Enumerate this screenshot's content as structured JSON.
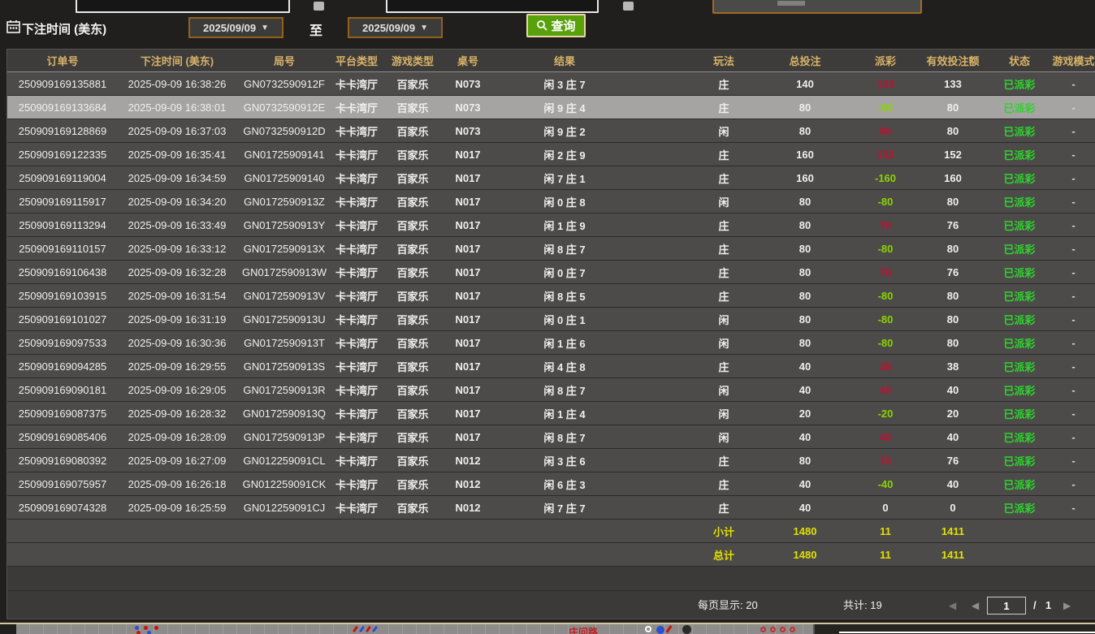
{
  "colors": {
    "header_gold": "#d9b369",
    "win_red": "#c11030",
    "loss_green": "#8ad402",
    "status_green": "#2fd32f",
    "total_yellow": "#e2e000",
    "query_green": "#58a10b",
    "date_border_orange": "#93601c",
    "highlight_row": "#a5a4a2"
  },
  "filters": {
    "bet_time_label": "下注时间 (美东)",
    "date_from": "2025/09/09",
    "date_to": "2025/09/09",
    "dropdown_arrow": "▼",
    "to_label": "至",
    "query_label": "查询"
  },
  "table": {
    "headers": [
      "订单号",
      "下注时间 (美东)",
      "局号",
      "平台类型",
      "游戏类型",
      "桌号",
      "结果",
      "",
      "玩法",
      "总投注",
      "派彩",
      "有效投注额",
      "状态",
      "游戏模式"
    ],
    "rows": [
      {
        "order": "250909169135881",
        "time": "2025-09-09 16:38:26",
        "round": "GN0732590912F",
        "platform": "卡卡湾厅",
        "game": "百家乐",
        "table": "N073",
        "result": "闲 3 庄 7",
        "play": "庄",
        "total": "140",
        "payout": "133",
        "payout_state": "pos",
        "valid": "133",
        "status": "已派彩",
        "mode": "-",
        "highlighted": false
      },
      {
        "order": "250909169133684",
        "time": "2025-09-09 16:38:01",
        "round": "GN0732590912E",
        "platform": "卡卡湾厅",
        "game": "百家乐",
        "table": "N073",
        "result": "闲 9 庄 4",
        "play": "庄",
        "total": "80",
        "payout": "-80",
        "payout_state": "neg",
        "valid": "80",
        "status": "已派彩",
        "mode": "-",
        "highlighted": true
      },
      {
        "order": "250909169128869",
        "time": "2025-09-09 16:37:03",
        "round": "GN0732590912D",
        "platform": "卡卡湾厅",
        "game": "百家乐",
        "table": "N073",
        "result": "闲 9 庄 2",
        "play": "闲",
        "total": "80",
        "payout": "80",
        "payout_state": "pos",
        "valid": "80",
        "status": "已派彩",
        "mode": "-",
        "highlighted": false
      },
      {
        "order": "250909169122335",
        "time": "2025-09-09 16:35:41",
        "round": "GN01725909141",
        "platform": "卡卡湾厅",
        "game": "百家乐",
        "table": "N017",
        "result": "闲 2 庄 9",
        "play": "庄",
        "total": "160",
        "payout": "152",
        "payout_state": "pos",
        "valid": "152",
        "status": "已派彩",
        "mode": "-",
        "highlighted": false
      },
      {
        "order": "250909169119004",
        "time": "2025-09-09 16:34:59",
        "round": "GN01725909140",
        "platform": "卡卡湾厅",
        "game": "百家乐",
        "table": "N017",
        "result": "闲 7 庄 1",
        "play": "庄",
        "total": "160",
        "payout": "-160",
        "payout_state": "neg",
        "valid": "160",
        "status": "已派彩",
        "mode": "-",
        "highlighted": false
      },
      {
        "order": "250909169115917",
        "time": "2025-09-09 16:34:20",
        "round": "GN0172590913Z",
        "platform": "卡卡湾厅",
        "game": "百家乐",
        "table": "N017",
        "result": "闲 0 庄 8",
        "play": "闲",
        "total": "80",
        "payout": "-80",
        "payout_state": "neg",
        "valid": "80",
        "status": "已派彩",
        "mode": "-",
        "highlighted": false
      },
      {
        "order": "250909169113294",
        "time": "2025-09-09 16:33:49",
        "round": "GN0172590913Y",
        "platform": "卡卡湾厅",
        "game": "百家乐",
        "table": "N017",
        "result": "闲 1 庄 9",
        "play": "庄",
        "total": "80",
        "payout": "76",
        "payout_state": "pos",
        "valid": "76",
        "status": "已派彩",
        "mode": "-",
        "highlighted": false
      },
      {
        "order": "250909169110157",
        "time": "2025-09-09 16:33:12",
        "round": "GN0172590913X",
        "platform": "卡卡湾厅",
        "game": "百家乐",
        "table": "N017",
        "result": "闲 8 庄 7",
        "play": "庄",
        "total": "80",
        "payout": "-80",
        "payout_state": "neg",
        "valid": "80",
        "status": "已派彩",
        "mode": "-",
        "highlighted": false
      },
      {
        "order": "250909169106438",
        "time": "2025-09-09 16:32:28",
        "round": "GN0172590913W",
        "platform": "卡卡湾厅",
        "game": "百家乐",
        "table": "N017",
        "result": "闲 0 庄 7",
        "play": "庄",
        "total": "80",
        "payout": "76",
        "payout_state": "pos",
        "valid": "76",
        "status": "已派彩",
        "mode": "-",
        "highlighted": false
      },
      {
        "order": "250909169103915",
        "time": "2025-09-09 16:31:54",
        "round": "GN0172590913V",
        "platform": "卡卡湾厅",
        "game": "百家乐",
        "table": "N017",
        "result": "闲 8 庄 5",
        "play": "庄",
        "total": "80",
        "payout": "-80",
        "payout_state": "neg",
        "valid": "80",
        "status": "已派彩",
        "mode": "-",
        "highlighted": false
      },
      {
        "order": "250909169101027",
        "time": "2025-09-09 16:31:19",
        "round": "GN0172590913U",
        "platform": "卡卡湾厅",
        "game": "百家乐",
        "table": "N017",
        "result": "闲 0 庄 1",
        "play": "闲",
        "total": "80",
        "payout": "-80",
        "payout_state": "neg",
        "valid": "80",
        "status": "已派彩",
        "mode": "-",
        "highlighted": false
      },
      {
        "order": "250909169097533",
        "time": "2025-09-09 16:30:36",
        "round": "GN0172590913T",
        "platform": "卡卡湾厅",
        "game": "百家乐",
        "table": "N017",
        "result": "闲 1 庄 6",
        "play": "闲",
        "total": "80",
        "payout": "-80",
        "payout_state": "neg",
        "valid": "80",
        "status": "已派彩",
        "mode": "-",
        "highlighted": false
      },
      {
        "order": "250909169094285",
        "time": "2025-09-09 16:29:55",
        "round": "GN0172590913S",
        "platform": "卡卡湾厅",
        "game": "百家乐",
        "table": "N017",
        "result": "闲 4 庄 8",
        "play": "庄",
        "total": "40",
        "payout": "38",
        "payout_state": "pos",
        "valid": "38",
        "status": "已派彩",
        "mode": "-",
        "highlighted": false
      },
      {
        "order": "250909169090181",
        "time": "2025-09-09 16:29:05",
        "round": "GN0172590913R",
        "platform": "卡卡湾厅",
        "game": "百家乐",
        "table": "N017",
        "result": "闲 8 庄 7",
        "play": "闲",
        "total": "40",
        "payout": "40",
        "payout_state": "pos",
        "valid": "40",
        "status": "已派彩",
        "mode": "-",
        "highlighted": false
      },
      {
        "order": "250909169087375",
        "time": "2025-09-09 16:28:32",
        "round": "GN0172590913Q",
        "platform": "卡卡湾厅",
        "game": "百家乐",
        "table": "N017",
        "result": "闲 1 庄 4",
        "play": "闲",
        "total": "20",
        "payout": "-20",
        "payout_state": "neg",
        "valid": "20",
        "status": "已派彩",
        "mode": "-",
        "highlighted": false
      },
      {
        "order": "250909169085406",
        "time": "2025-09-09 16:28:09",
        "round": "GN0172590913P",
        "platform": "卡卡湾厅",
        "game": "百家乐",
        "table": "N017",
        "result": "闲 8 庄 7",
        "play": "闲",
        "total": "40",
        "payout": "40",
        "payout_state": "pos",
        "valid": "40",
        "status": "已派彩",
        "mode": "-",
        "highlighted": false
      },
      {
        "order": "250909169080392",
        "time": "2025-09-09 16:27:09",
        "round": "GN012259091CL",
        "platform": "卡卡湾厅",
        "game": "百家乐",
        "table": "N012",
        "result": "闲 3 庄 6",
        "play": "庄",
        "total": "80",
        "payout": "76",
        "payout_state": "pos",
        "valid": "76",
        "status": "已派彩",
        "mode": "-",
        "highlighted": false
      },
      {
        "order": "250909169075957",
        "time": "2025-09-09 16:26:18",
        "round": "GN012259091CK",
        "platform": "卡卡湾厅",
        "game": "百家乐",
        "table": "N012",
        "result": "闲 6 庄 3",
        "play": "庄",
        "total": "40",
        "payout": "-40",
        "payout_state": "neg",
        "valid": "40",
        "status": "已派彩",
        "mode": "-",
        "highlighted": false
      },
      {
        "order": "250909169074328",
        "time": "2025-09-09 16:25:59",
        "round": "GN012259091CJ",
        "platform": "卡卡湾厅",
        "game": "百家乐",
        "table": "N012",
        "result": "闲 7 庄 7",
        "play": "庄",
        "total": "40",
        "payout": "0",
        "payout_state": "zero",
        "valid": "0",
        "status": "已派彩",
        "mode": "-",
        "highlighted": false
      }
    ],
    "subtotal": {
      "label": "小计",
      "total": "1480",
      "payout": "11",
      "valid": "1411"
    },
    "grand_total": {
      "label": "总计",
      "total": "1480",
      "payout": "11",
      "valid": "1411"
    }
  },
  "footer": {
    "page_size_text": "每页显示: 20",
    "total_text": "共计: 19",
    "first_arrow": "◀",
    "prev_arrow": "◀",
    "next_arrow": "▶",
    "page_value": "1",
    "page_separator": "/",
    "page_total": "1"
  },
  "bottom_strip": {
    "label": "庄问路"
  }
}
